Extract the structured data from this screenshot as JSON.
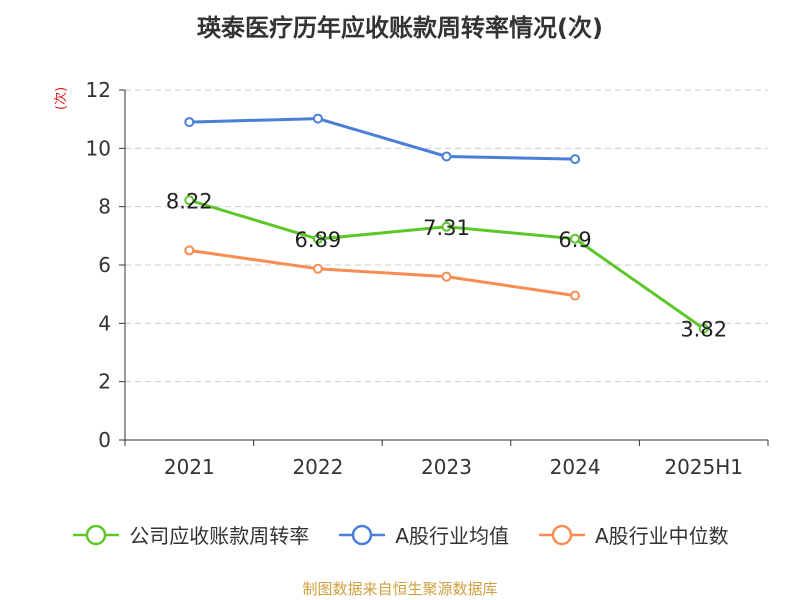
{
  "chart_data": {
    "type": "line",
    "title": "瑛泰医疗历年应收账款周转率情况(次)",
    "ylabel": "(次)",
    "ylim": [
      0,
      12
    ],
    "yticks": [
      0,
      2,
      4,
      6,
      8,
      10,
      12
    ],
    "categories": [
      "2021",
      "2022",
      "2023",
      "2024",
      "2025H1"
    ],
    "series": [
      {
        "name": "公司应收账款周转率",
        "color": "#5cc729",
        "values": [
          8.22,
          6.89,
          7.31,
          6.9,
          3.82
        ],
        "labels": [
          "8.22",
          "6.89",
          "7.31",
          "6.9",
          "3.82"
        ]
      },
      {
        "name": "A股行业均值",
        "color": "#4a7fd8",
        "values": [
          10.9,
          11.02,
          9.72,
          9.63,
          null
        ]
      },
      {
        "name": "A股行业中位数",
        "color": "#f78d53",
        "values": [
          6.5,
          5.87,
          5.6,
          4.95,
          null
        ]
      }
    ]
  },
  "source": "制图数据来自恒生聚源数据库",
  "source_color": "#d0a040"
}
